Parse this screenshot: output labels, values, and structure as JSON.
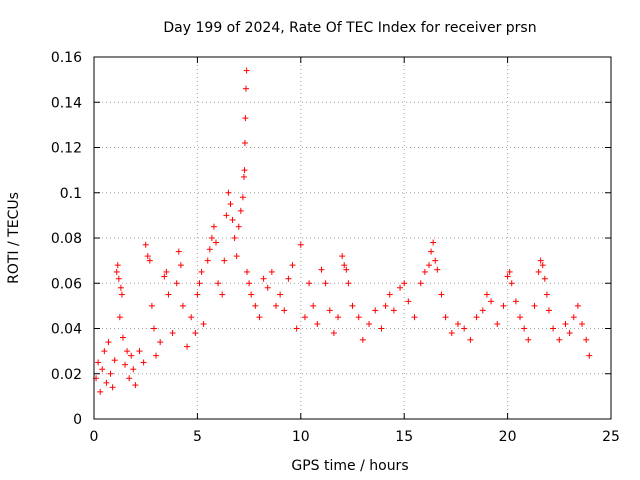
{
  "chart_data": {
    "type": "scatter",
    "title": "Day 199 of 2024, Rate Of TEC Index for receiver prsn",
    "xlabel": "GPS time / hours",
    "ylabel": "ROTI / TECUs",
    "xlim": [
      0,
      25
    ],
    "ylim": [
      0,
      0.16
    ],
    "xticks": [
      0,
      5,
      10,
      15,
      20,
      25
    ],
    "xtick_labels": [
      "0",
      "5",
      "10",
      "15",
      "20",
      "25"
    ],
    "yticks": [
      0,
      0.02,
      0.04,
      0.06,
      0.08,
      0.1,
      0.12,
      0.14,
      0.16
    ],
    "ytick_labels": [
      "0",
      "0.02",
      "0.04",
      "0.06",
      "0.08",
      "0.1",
      "0.12",
      "0.14",
      "0.16"
    ],
    "grid": true,
    "marker": "+",
    "color": "#ff0000",
    "series": [
      {
        "name": "ROTI",
        "points": [
          [
            0.1,
            0.018
          ],
          [
            0.2,
            0.025
          ],
          [
            0.3,
            0.012
          ],
          [
            0.4,
            0.022
          ],
          [
            0.5,
            0.03
          ],
          [
            0.6,
            0.016
          ],
          [
            0.7,
            0.034
          ],
          [
            0.8,
            0.02
          ],
          [
            0.9,
            0.014
          ],
          [
            1.0,
            0.026
          ],
          [
            1.1,
            0.065
          ],
          [
            1.15,
            0.068
          ],
          [
            1.2,
            0.062
          ],
          [
            1.25,
            0.045
          ],
          [
            1.3,
            0.058
          ],
          [
            1.35,
            0.055
          ],
          [
            1.4,
            0.036
          ],
          [
            1.5,
            0.024
          ],
          [
            1.6,
            0.03
          ],
          [
            1.7,
            0.018
          ],
          [
            1.8,
            0.028
          ],
          [
            1.9,
            0.022
          ],
          [
            2.0,
            0.015
          ],
          [
            2.2,
            0.03
          ],
          [
            2.4,
            0.025
          ],
          [
            2.5,
            0.077
          ],
          [
            2.6,
            0.072
          ],
          [
            2.7,
            0.07
          ],
          [
            2.8,
            0.05
          ],
          [
            2.9,
            0.04
          ],
          [
            3.0,
            0.028
          ],
          [
            3.2,
            0.034
          ],
          [
            3.4,
            0.063
          ],
          [
            3.5,
            0.065
          ],
          [
            3.6,
            0.055
          ],
          [
            3.8,
            0.038
          ],
          [
            4.0,
            0.06
          ],
          [
            4.1,
            0.074
          ],
          [
            4.2,
            0.068
          ],
          [
            4.3,
            0.05
          ],
          [
            4.5,
            0.032
          ],
          [
            4.7,
            0.045
          ],
          [
            4.9,
            0.038
          ],
          [
            5.0,
            0.055
          ],
          [
            5.1,
            0.06
          ],
          [
            5.2,
            0.065
          ],
          [
            5.3,
            0.042
          ],
          [
            5.5,
            0.07
          ],
          [
            5.6,
            0.075
          ],
          [
            5.7,
            0.08
          ],
          [
            5.8,
            0.085
          ],
          [
            5.9,
            0.078
          ],
          [
            6.0,
            0.06
          ],
          [
            6.2,
            0.055
          ],
          [
            6.3,
            0.07
          ],
          [
            6.4,
            0.09
          ],
          [
            6.5,
            0.1
          ],
          [
            6.6,
            0.095
          ],
          [
            6.7,
            0.088
          ],
          [
            6.8,
            0.08
          ],
          [
            6.9,
            0.072
          ],
          [
            7.0,
            0.085
          ],
          [
            7.1,
            0.092
          ],
          [
            7.2,
            0.098
          ],
          [
            7.25,
            0.107
          ],
          [
            7.28,
            0.11
          ],
          [
            7.3,
            0.122
          ],
          [
            7.32,
            0.133
          ],
          [
            7.35,
            0.146
          ],
          [
            7.38,
            0.154
          ],
          [
            7.4,
            0.065
          ],
          [
            7.5,
            0.06
          ],
          [
            7.6,
            0.055
          ],
          [
            7.8,
            0.05
          ],
          [
            8.0,
            0.045
          ],
          [
            8.2,
            0.062
          ],
          [
            8.4,
            0.058
          ],
          [
            8.6,
            0.065
          ],
          [
            8.8,
            0.05
          ],
          [
            9.0,
            0.055
          ],
          [
            9.2,
            0.048
          ],
          [
            9.4,
            0.062
          ],
          [
            9.6,
            0.068
          ],
          [
            9.8,
            0.04
          ],
          [
            10.0,
            0.077
          ],
          [
            10.2,
            0.045
          ],
          [
            10.4,
            0.06
          ],
          [
            10.6,
            0.05
          ],
          [
            10.8,
            0.042
          ],
          [
            11.0,
            0.066
          ],
          [
            11.2,
            0.06
          ],
          [
            11.4,
            0.048
          ],
          [
            11.6,
            0.038
          ],
          [
            11.8,
            0.045
          ],
          [
            12.0,
            0.072
          ],
          [
            12.1,
            0.068
          ],
          [
            12.2,
            0.066
          ],
          [
            12.3,
            0.06
          ],
          [
            12.5,
            0.05
          ],
          [
            12.8,
            0.045
          ],
          [
            13.0,
            0.035
          ],
          [
            13.3,
            0.042
          ],
          [
            13.6,
            0.048
          ],
          [
            13.9,
            0.04
          ],
          [
            14.1,
            0.05
          ],
          [
            14.3,
            0.055
          ],
          [
            14.5,
            0.048
          ],
          [
            14.8,
            0.058
          ],
          [
            15.0,
            0.06
          ],
          [
            15.2,
            0.052
          ],
          [
            15.5,
            0.045
          ],
          [
            15.8,
            0.06
          ],
          [
            16.0,
            0.065
          ],
          [
            16.2,
            0.068
          ],
          [
            16.3,
            0.074
          ],
          [
            16.4,
            0.078
          ],
          [
            16.5,
            0.07
          ],
          [
            16.6,
            0.066
          ],
          [
            16.8,
            0.055
          ],
          [
            17.0,
            0.045
          ],
          [
            17.3,
            0.038
          ],
          [
            17.6,
            0.042
          ],
          [
            17.9,
            0.04
          ],
          [
            18.2,
            0.035
          ],
          [
            18.5,
            0.045
          ],
          [
            18.8,
            0.048
          ],
          [
            19.0,
            0.055
          ],
          [
            19.2,
            0.052
          ],
          [
            19.5,
            0.042
          ],
          [
            19.8,
            0.05
          ],
          [
            20.0,
            0.063
          ],
          [
            20.1,
            0.065
          ],
          [
            20.2,
            0.06
          ],
          [
            20.4,
            0.052
          ],
          [
            20.6,
            0.045
          ],
          [
            20.8,
            0.04
          ],
          [
            21.0,
            0.035
          ],
          [
            21.3,
            0.05
          ],
          [
            21.5,
            0.065
          ],
          [
            21.6,
            0.07
          ],
          [
            21.7,
            0.068
          ],
          [
            21.8,
            0.062
          ],
          [
            21.9,
            0.055
          ],
          [
            22.0,
            0.048
          ],
          [
            22.2,
            0.04
          ],
          [
            22.5,
            0.035
          ],
          [
            22.8,
            0.042
          ],
          [
            23.0,
            0.038
          ],
          [
            23.2,
            0.045
          ],
          [
            23.4,
            0.05
          ],
          [
            23.6,
            0.042
          ],
          [
            23.8,
            0.035
          ],
          [
            23.95,
            0.028
          ]
        ]
      }
    ]
  }
}
